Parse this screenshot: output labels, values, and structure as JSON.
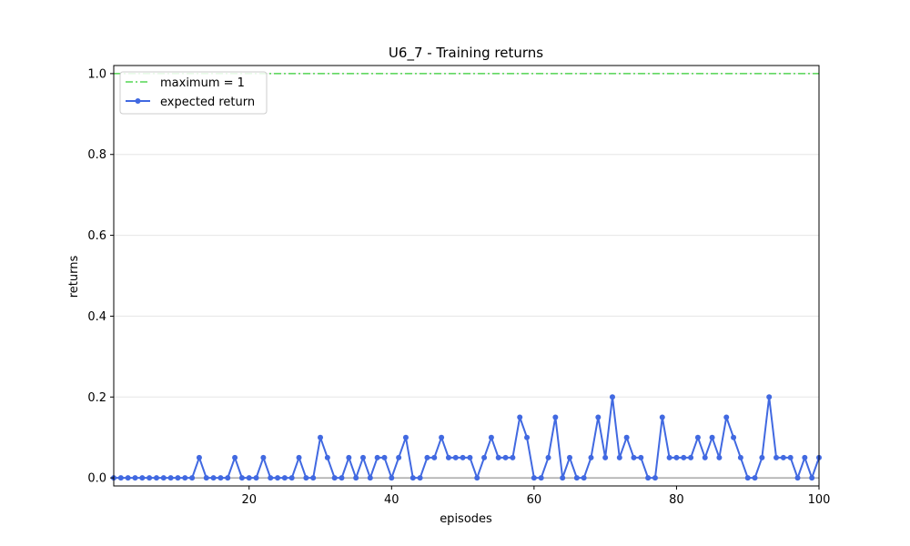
{
  "chart_data": {
    "type": "line",
    "title": "U6_7 - Training returns",
    "xlabel": "episodes",
    "ylabel": "returns",
    "xlim": [
      1,
      100
    ],
    "ylim": [
      -0.02,
      1.02
    ],
    "xticks": [
      20,
      40,
      60,
      80,
      100
    ],
    "xtick_labels": [
      "20",
      "40",
      "60",
      "80",
      "100"
    ],
    "yticks": [
      0.0,
      0.2,
      0.4,
      0.6,
      0.8,
      1.0
    ],
    "ytick_labels": [
      "0.0",
      "0.2",
      "0.4",
      "0.6",
      "0.8",
      "1.0"
    ],
    "grid": "horizontal",
    "legend_position": "top-left",
    "reference_lines": [
      {
        "name": "maximum = 1",
        "y": 1,
        "style": "dash-dot",
        "color": "#32cd32"
      },
      {
        "name": "",
        "y": 0,
        "style": "solid",
        "color": "#808080"
      }
    ],
    "series": [
      {
        "name": "expected return",
        "color": "#4169e1",
        "marker": "circle",
        "x": [
          1,
          2,
          3,
          4,
          5,
          6,
          7,
          8,
          9,
          10,
          11,
          12,
          13,
          14,
          15,
          16,
          17,
          18,
          19,
          20,
          21,
          22,
          23,
          24,
          25,
          26,
          27,
          28,
          29,
          30,
          31,
          32,
          33,
          34,
          35,
          36,
          37,
          38,
          39,
          40,
          41,
          42,
          43,
          44,
          45,
          46,
          47,
          48,
          49,
          50,
          51,
          52,
          53,
          54,
          55,
          56,
          57,
          58,
          59,
          60,
          61,
          62,
          63,
          64,
          65,
          66,
          67,
          68,
          69,
          70,
          71,
          72,
          73,
          74,
          75,
          76,
          77,
          78,
          79,
          80,
          81,
          82,
          83,
          84,
          85,
          86,
          87,
          88,
          89,
          90,
          91,
          92,
          93,
          94,
          95,
          96,
          97,
          98,
          99,
          100
        ],
        "y": [
          0,
          0,
          0,
          0,
          0,
          0,
          0,
          0,
          0,
          0,
          0,
          0,
          0.05,
          0,
          0,
          0,
          0,
          0.05,
          0,
          0,
          0,
          0.05,
          0,
          0,
          0,
          0,
          0.05,
          0,
          0,
          0.1,
          0.05,
          0,
          0,
          0.05,
          0,
          0.05,
          0,
          0.05,
          0.05,
          0,
          0.05,
          0.1,
          0,
          0,
          0.05,
          0.05,
          0.1,
          0.05,
          0.05,
          0.05,
          0.05,
          0,
          0.05,
          0.1,
          0.05,
          0.05,
          0.05,
          0.15,
          0.1,
          0,
          0,
          0.05,
          0.15,
          0,
          0.05,
          0,
          0,
          0.05,
          0.15,
          0.05,
          0.2,
          0.05,
          0.1,
          0.05,
          0.05,
          0,
          0,
          0.15,
          0.05,
          0.05,
          0.05,
          0.05,
          0.1,
          0.05,
          0.1,
          0.05,
          0.15,
          0.1,
          0.05,
          0,
          0,
          0.05,
          0.2,
          0.05,
          0.05,
          0.05,
          0,
          0.05,
          0,
          0.05
        ]
      }
    ]
  }
}
